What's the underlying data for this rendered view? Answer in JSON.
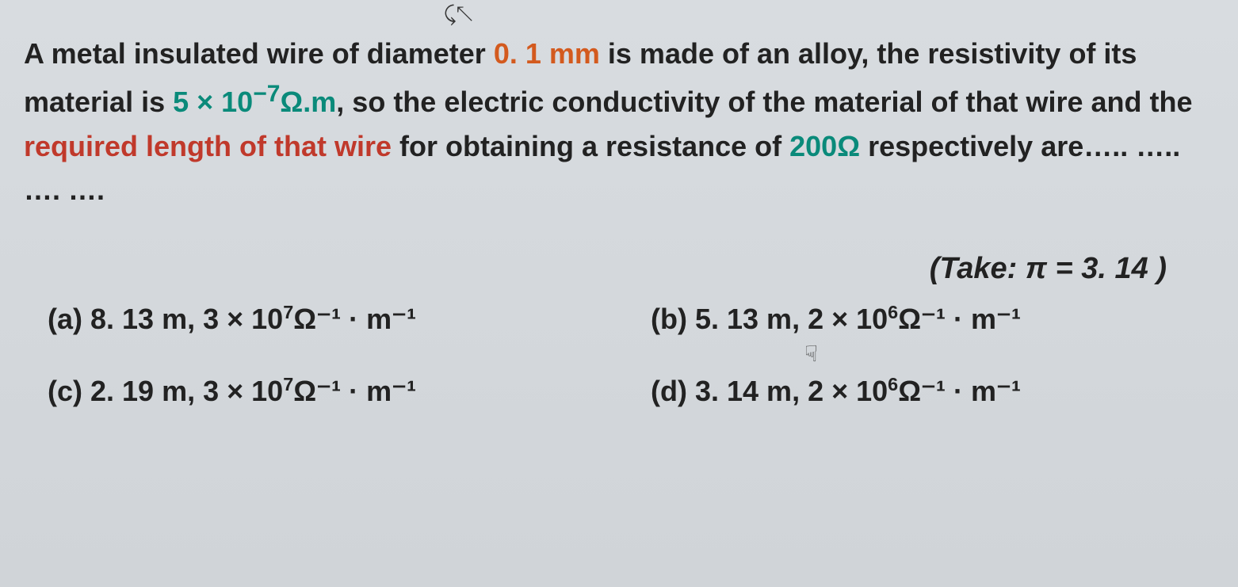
{
  "decoration": {
    "top_cursor": "⤹↖"
  },
  "question": {
    "p1": "A metal insulated wire of diameter ",
    "diameter": "0. 1 mm",
    "p2": " is made of an alloy, the resistivity of its material is ",
    "resistivity_coef": "5 × 10",
    "resistivity_exp": "−7",
    "resistivity_unit": "Ω.m",
    "p3": ", so the electric conductivity of the material of that wire and the ",
    "req_phrase": "required length of that wire",
    "p4": " for obtaining a resistance of ",
    "resistance": "200Ω",
    "p5": " respectively are….. ….. …. ….",
    "take_label": "(Take: ",
    "take_sym": "π",
    "take_eq": " = ",
    "take_val": "3. 14",
    "take_close": " )"
  },
  "options": {
    "a": {
      "label": "(a) ",
      "len": "8. 13 m",
      "sep": ", ",
      "coef": "3 × 10",
      "exp": "7",
      "unit": "Ω⁻¹ · m⁻¹"
    },
    "b": {
      "label": "(b) ",
      "len": "5. 13 m",
      "sep": ", ",
      "coef": "2 × 10",
      "exp": "6",
      "unit": "Ω⁻¹ · m⁻¹"
    },
    "c": {
      "label": "(c) ",
      "len": "2. 19 m",
      "sep": ", ",
      "coef": "3 × 10",
      "exp": "7",
      "unit": "Ω⁻¹ · m⁻¹"
    },
    "d": {
      "label": "(d) ",
      "len": "3. 14 m",
      "sep": ", ",
      "coef": "2 × 10",
      "exp": "6",
      "unit": "Ω⁻¹ · m⁻¹"
    }
  },
  "cursor_hand": "☟"
}
